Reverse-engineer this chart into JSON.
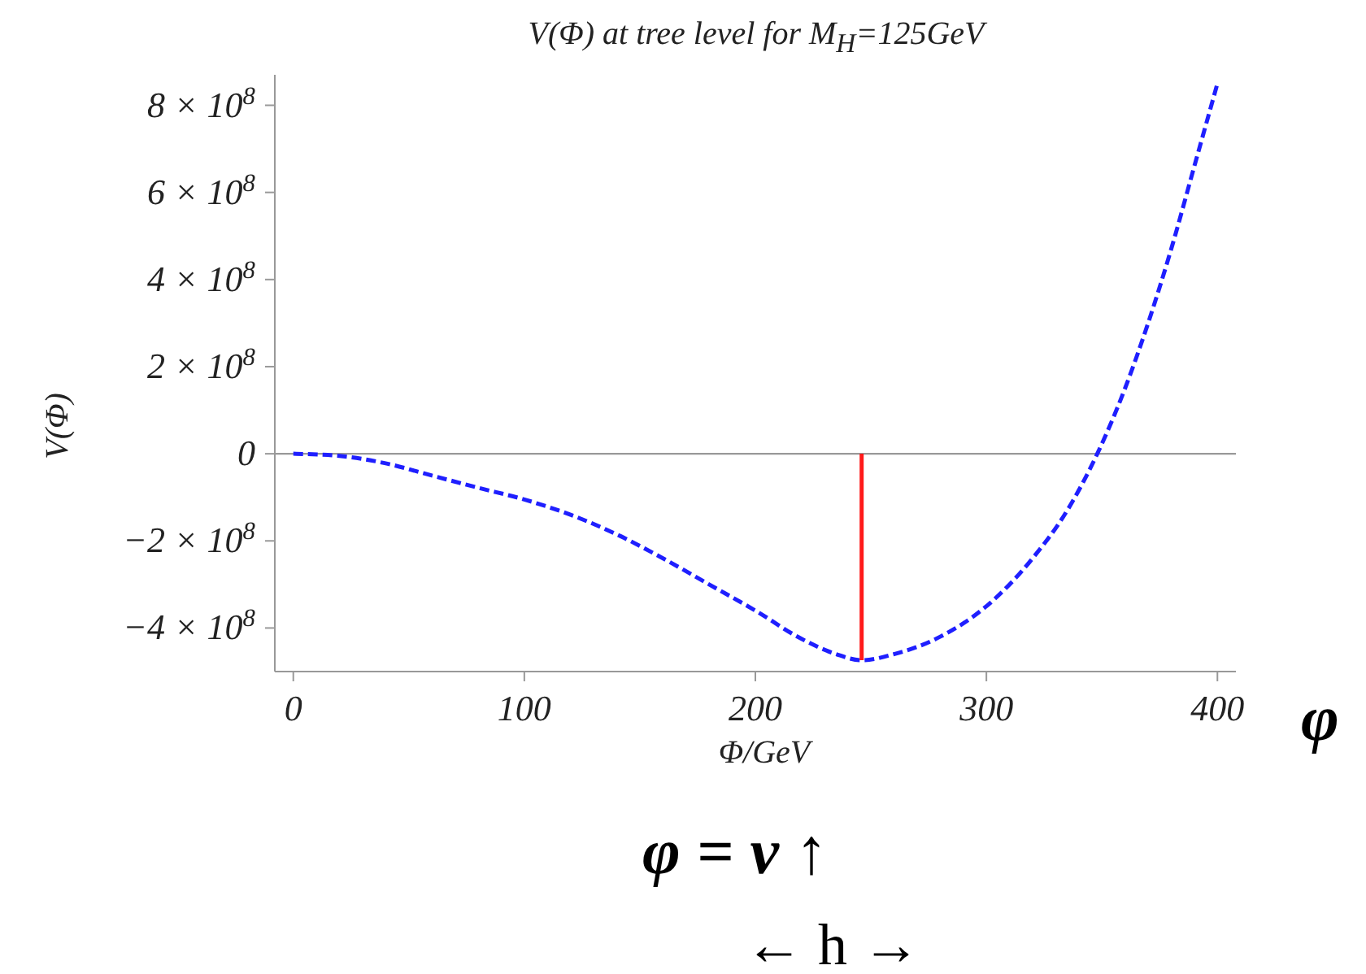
{
  "chart_data": {
    "type": "line",
    "title": "V(Φ) at tree level for M$_{H}$=125GeV",
    "xlabel": "Φ/GeV",
    "ylabel": "V(Φ)",
    "xlim": [
      -8,
      408
    ],
    "xticks": [
      0,
      100,
      200,
      300,
      400
    ],
    "ylim": [
      -500000000,
      870000000
    ],
    "yticks": [
      {
        "value": -400000000,
        "label": "−4 × 10$^{8}$"
      },
      {
        "value": -200000000,
        "label": "−2 × 10$^{8}$"
      },
      {
        "value": 0,
        "label": "0"
      },
      {
        "value": 200000000,
        "label": "2 × 10$^{8}$"
      },
      {
        "value": 400000000,
        "label": "4 × 10$^{8}$"
      },
      {
        "value": 600000000,
        "label": "6 × 10$^{8}$"
      },
      {
        "value": 800000000,
        "label": "8 × 10$^{8}$"
      }
    ],
    "series": [
      {
        "color": "#1f1fff",
        "line_style": "dashed",
        "x": [
          0,
          20,
          40,
          60,
          80,
          100,
          120,
          140,
          160,
          180,
          200,
          220,
          235,
          246,
          260,
          280,
          300,
          320,
          335,
          348,
          360,
          370,
          380,
          390,
          400
        ],
        "values": [
          0,
          -5000000,
          -22000000,
          -50000000,
          -78000000,
          -105000000,
          -140000000,
          -185000000,
          -240000000,
          -300000000,
          -360000000,
          -425000000,
          -460000000,
          -474000000,
          -460000000,
          -420000000,
          -350000000,
          -240000000,
          -130000000,
          0,
          150000000,
          300000000,
          470000000,
          660000000,
          850000000
        ]
      },
      {
        "color": "#ff1a1a",
        "line_style": "solid",
        "x": [
          246,
          246
        ],
        "values": [
          0,
          -474000000
        ]
      }
    ],
    "ref_lines": [
      {
        "axis": "y",
        "value": 0,
        "color": "#999999"
      }
    ],
    "marker": "none",
    "annotations": [
      "φ",
      "φ = v ↑",
      "← h →"
    ]
  }
}
